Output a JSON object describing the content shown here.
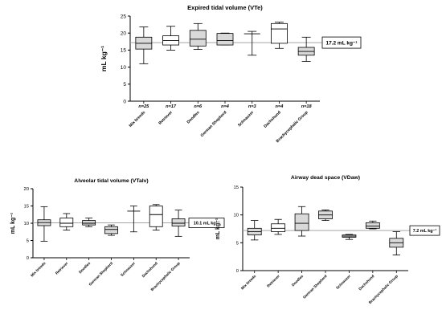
{
  "chart_data": [
    {
      "type": "boxplot",
      "title": "Expired tidal volume (VTe)",
      "ylabel": "mL kg⁻¹",
      "ylim": [
        0,
        25
      ],
      "yticks": [
        0,
        5,
        10,
        15,
        20,
        25
      ],
      "grid": false,
      "categories": [
        "Mix breeds",
        "Retriever",
        "Doodles",
        "German Shepherd",
        "Schnauzer",
        "Dachshund",
        "Brachycephalic Group"
      ],
      "n_labels": [
        "n=25",
        "n=17",
        "n=6",
        "n=4",
        "n=3",
        "n=4",
        "n=18"
      ],
      "boxes": [
        {
          "min": 11.0,
          "q1": 15.3,
          "median": 17.0,
          "q3": 18.8,
          "max": 21.8,
          "fill": "#d9d9d9"
        },
        {
          "min": 15.0,
          "q1": 16.5,
          "median": 17.8,
          "q3": 19.2,
          "max": 22.0,
          "fill": "#ffffff"
        },
        {
          "min": 15.2,
          "q1": 16.2,
          "median": 18.2,
          "q3": 20.8,
          "max": 22.8,
          "fill": "#d9d9d9"
        },
        {
          "min": 16.5,
          "q1": 16.5,
          "median": 17.8,
          "q3": 19.9,
          "max": 20.0,
          "fill": "#d9d9d9"
        },
        {
          "min": 13.5,
          "q1": null,
          "median": 19.8,
          "q3": null,
          "max": 20.5,
          "fill": "none"
        },
        {
          "min": 15.5,
          "q1": 17.0,
          "median": 21.2,
          "q3": 22.8,
          "max": 23.2,
          "fill": "#ffffff"
        },
        {
          "min": 11.7,
          "q1": 13.5,
          "median": 14.6,
          "q3": 15.8,
          "max": 18.8,
          "fill": "#d9d9d9"
        }
      ],
      "reference_line": {
        "value": 17.2,
        "label": "17.2 mL kg⁻¹"
      }
    },
    {
      "type": "boxplot",
      "title": "Alveolar tidal volume (VTalv)",
      "ylabel": "mL kg⁻¹",
      "ylim": [
        0,
        20
      ],
      "yticks": [
        0,
        5,
        10,
        15,
        20
      ],
      "grid": false,
      "categories": [
        "Mix breeds",
        "Retriever",
        "Doodles",
        "German Shepherd",
        "Schnauzer",
        "Dachshund",
        "Brachycephalic Group"
      ],
      "boxes": [
        {
          "min": 4.8,
          "q1": 9.3,
          "median": 10.2,
          "q3": 11.0,
          "max": 14.8,
          "fill": "#d9d9d9"
        },
        {
          "min": 8.0,
          "q1": 9.0,
          "median": 10.0,
          "q3": 11.5,
          "max": 12.8,
          "fill": "#ffffff"
        },
        {
          "min": 9.0,
          "q1": 9.5,
          "median": 10.0,
          "q3": 10.8,
          "max": 11.5,
          "fill": "#d9d9d9"
        },
        {
          "min": 6.5,
          "q1": 7.0,
          "median": 8.2,
          "q3": 9.0,
          "max": 9.5,
          "fill": "#d9d9d9"
        },
        {
          "min": 7.5,
          "q1": null,
          "median": 13.5,
          "q3": null,
          "max": 15.0,
          "fill": "none"
        },
        {
          "min": 8.0,
          "q1": 9.0,
          "median": 12.5,
          "q3": 15.0,
          "max": 15.4,
          "fill": "#ffffff"
        },
        {
          "min": 6.2,
          "q1": 9.2,
          "median": 10.0,
          "q3": 11.3,
          "max": 13.8,
          "fill": "#d9d9d9"
        }
      ],
      "reference_line": {
        "value": 10.1,
        "label": "10.1 mL kg⁻¹"
      }
    },
    {
      "type": "boxplot",
      "title": "Airway dead space  (VDaw)",
      "ylabel": "mL kg⁻¹",
      "ylim": [
        0,
        15
      ],
      "yticks": [
        0,
        5,
        10,
        15
      ],
      "grid": false,
      "categories": [
        "Mix breeds",
        "Retriever",
        "Doodles",
        "German Shepherd",
        "Schnauzer",
        "Dachshund",
        "Brachycephalic Group"
      ],
      "boxes": [
        {
          "min": 5.5,
          "q1": 6.4,
          "median": 7.0,
          "q3": 7.6,
          "max": 9.0,
          "fill": "#d9d9d9"
        },
        {
          "min": 6.5,
          "q1": 7.0,
          "median": 7.6,
          "q3": 8.4,
          "max": 9.2,
          "fill": "#ffffff"
        },
        {
          "min": 6.2,
          "q1": 7.2,
          "median": 8.5,
          "q3": 10.2,
          "max": 11.5,
          "fill": "#d9d9d9"
        },
        {
          "min": 9.0,
          "q1": 9.3,
          "median": 10.0,
          "q3": 10.7,
          "max": 10.9,
          "fill": "#d9d9d9"
        },
        {
          "min": 5.6,
          "q1": 6.0,
          "median": 6.2,
          "q3": 6.4,
          "max": 6.5,
          "fill": "#d9d9d9"
        },
        {
          "min": 7.5,
          "q1": 7.6,
          "median": 8.0,
          "q3": 8.6,
          "max": 8.9,
          "fill": "#d9d9d9"
        },
        {
          "min": 2.8,
          "q1": 4.2,
          "median": 5.0,
          "q3": 5.8,
          "max": 7.0,
          "fill": "#d9d9d9"
        }
      ],
      "reference_line": {
        "value": 7.2,
        "label": "7.2 mL kg⁻¹"
      }
    }
  ]
}
